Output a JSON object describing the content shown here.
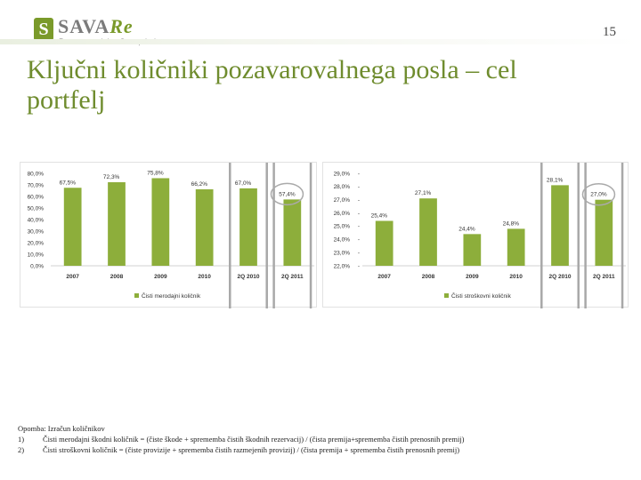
{
  "header": {
    "logo_mark": "S",
    "logo_name_main": "SAVA",
    "logo_name_accent": "Re",
    "logo_subtitle": "Pozavarovalnica Sava, d. d.",
    "page_number": "15",
    "title": "Ključni količniki pozavarovalnega posla – cel portfelj"
  },
  "colors": {
    "bar": "#8dae3b",
    "highlight_box": "#a8a8a8",
    "title": "#6f8c2e"
  },
  "chart_data": [
    {
      "type": "bar",
      "categories": [
        "2007",
        "2008",
        "2009",
        "2010",
        "2Q 2010",
        "2Q 2011"
      ],
      "series": [
        {
          "name": "Čisti merodajni količnik",
          "values": [
            67.5,
            72.3,
            75.8,
            66.2,
            67.0,
            57.4
          ]
        }
      ],
      "data_labels": [
        "67,5%",
        "72,3%",
        "75,8%",
        "66,2%",
        "67,0%",
        "57,4%"
      ],
      "ylim": [
        0,
        80
      ],
      "yticks": [
        "0,0%",
        "10,0%",
        "20,0%",
        "30,0%",
        "40,0%",
        "50,0%",
        "60,0%",
        "70,0%",
        "80,0%"
      ],
      "highlight": [
        "2Q 2010",
        "2Q 2011"
      ],
      "circled_label": "2Q 2011",
      "legend": "bottom"
    },
    {
      "type": "bar",
      "categories": [
        "2007",
        "2008",
        "2009",
        "2010",
        "2Q 2010",
        "2Q 2011"
      ],
      "series": [
        {
          "name": "Čisti stroškovni količnik",
          "values": [
            25.4,
            27.1,
            24.4,
            24.8,
            28.1,
            27.0
          ]
        }
      ],
      "data_labels": [
        "25,4%",
        "27,1%",
        "24,4%",
        "24,8%",
        "28,1%",
        "27,0%"
      ],
      "ylim": [
        22,
        29
      ],
      "yticks": [
        "22,0%",
        "23,0%",
        "24,0%",
        "25,0%",
        "26,0%",
        "27,0%",
        "28,0%",
        "29,0%"
      ],
      "highlight": [
        "2Q 2010",
        "2Q 2011"
      ],
      "circled_label": "2Q 2011",
      "legend": "bottom"
    }
  ],
  "notes": {
    "heading": "Opomba: Izračun količnikov",
    "items": [
      {
        "num": "1)",
        "text": "Čisti merodajni škodni količnik = (čiste škode + sprememba čistih škodnih rezervacij) / (čista premija+sprememba čistih prenosnih premij)"
      },
      {
        "num": "2)",
        "text": "Čisti stroškovni količnik = (čiste provizije + sprememba čistih razmejenih provizij) / (čista premija + sprememba čistih prenosnih premij)"
      }
    ]
  }
}
